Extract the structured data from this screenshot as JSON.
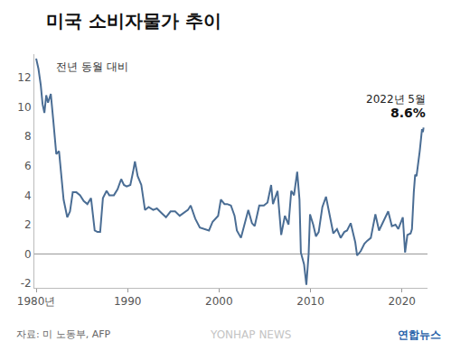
{
  "chart_data": {
    "type": "line",
    "title": "미국 소비자물가 추이",
    "subtitle": "전년 동월 대비",
    "source": "자료: 미 노동부, AFP",
    "credit": "연합뉴스",
    "watermark": "YONHAP NEWS",
    "color": "#4a6d94",
    "grid": false,
    "x": [
      1980.0,
      1980.25,
      1980.5,
      1980.7,
      1980.9,
      1981.1,
      1981.3,
      1981.6,
      1981.9,
      1982.2,
      1982.5,
      1982.8,
      1983.0,
      1983.4,
      1983.7,
      1984.0,
      1984.4,
      1984.8,
      1985.2,
      1985.6,
      1986.0,
      1986.4,
      1986.7,
      1987.0,
      1987.3,
      1987.7,
      1988.0,
      1988.5,
      1988.9,
      1989.3,
      1989.6,
      1989.9,
      1990.3,
      1990.6,
      1990.8,
      1991.1,
      1991.5,
      1991.9,
      1992.3,
      1992.8,
      1993.2,
      1993.7,
      1994.2,
      1994.7,
      1995.2,
      1995.7,
      1996.2,
      1996.6,
      1996.9,
      1997.4,
      1997.9,
      1998.4,
      1998.9,
      1999.3,
      1999.9,
      2000.2,
      2000.6,
      2000.9,
      2001.3,
      2001.7,
      2001.95,
      2002.4,
      2002.9,
      2003.2,
      2003.6,
      2003.9,
      2004.4,
      2004.9,
      2005.3,
      2005.7,
      2005.9,
      2006.4,
      2006.8,
      2007.2,
      2007.6,
      2007.9,
      2008.2,
      2008.55,
      2008.8,
      2008.95,
      2009.3,
      2009.55,
      2009.8,
      2009.95,
      2010.3,
      2010.6,
      2010.9,
      2011.3,
      2011.7,
      2012.0,
      2012.5,
      2012.9,
      2013.3,
      2013.7,
      2014.0,
      2014.4,
      2014.9,
      2015.1,
      2015.5,
      2015.9,
      2016.2,
      2016.6,
      2016.95,
      2017.1,
      2017.5,
      2017.9,
      2018.5,
      2018.9,
      2019.3,
      2019.6,
      2019.95,
      2020.1,
      2020.35,
      2020.6,
      2020.95,
      2021.1,
      2021.3,
      2021.45,
      2021.6,
      2021.8,
      2021.95,
      2022.1,
      2022.2,
      2022.3,
      2022.37
    ],
    "values": [
      13.3,
      12.6,
      11.5,
      10.2,
      9.6,
      10.8,
      10.3,
      10.9,
      8.9,
      6.8,
      7.0,
      5.0,
      3.7,
      2.5,
      2.9,
      4.2,
      4.2,
      4.0,
      3.6,
      3.4,
      3.8,
      1.6,
      1.5,
      1.5,
      3.8,
      4.3,
      4.0,
      4.0,
      4.4,
      5.1,
      4.7,
      4.6,
      4.7,
      5.6,
      6.3,
      5.3,
      4.7,
      3.0,
      3.2,
      3.0,
      3.1,
      2.8,
      2.5,
      2.9,
      2.9,
      2.6,
      2.8,
      3.0,
      3.3,
      2.4,
      1.8,
      1.7,
      1.6,
      2.2,
      2.6,
      3.7,
      3.4,
      3.4,
      3.3,
      2.6,
      1.6,
      1.1,
      2.4,
      3.0,
      2.1,
      1.9,
      3.3,
      3.3,
      3.5,
      4.7,
      3.4,
      4.3,
      1.3,
      2.6,
      2.0,
      4.3,
      4.0,
      5.6,
      3.7,
      0.1,
      -0.7,
      -2.1,
      0.0,
      2.7,
      2.0,
      1.2,
      1.5,
      3.2,
      3.9,
      2.9,
      1.4,
      1.7,
      1.1,
      1.5,
      1.6,
      2.1,
      0.8,
      -0.1,
      0.2,
      0.7,
      0.9,
      1.1,
      2.1,
      2.7,
      1.6,
      2.1,
      2.9,
      1.9,
      2.0,
      1.7,
      2.3,
      2.5,
      0.1,
      1.3,
      1.4,
      1.7,
      4.2,
      5.4,
      5.3,
      6.2,
      7.0,
      7.9,
      8.5,
      8.3,
      8.6
    ],
    "xlim": [
      1979.8,
      2022.8
    ],
    "xticks": [
      {
        "value": 1980,
        "label": "1980년"
      },
      1990,
      2000,
      2010,
      2020
    ],
    "ylim": [
      -2.3,
      13.6
    ],
    "yticks": [
      -2,
      0,
      2,
      4,
      6,
      8,
      10,
      12
    ],
    "end_label": {
      "label": "2022년 5월",
      "value": 8.6,
      "value_label": "8.6%"
    }
  }
}
